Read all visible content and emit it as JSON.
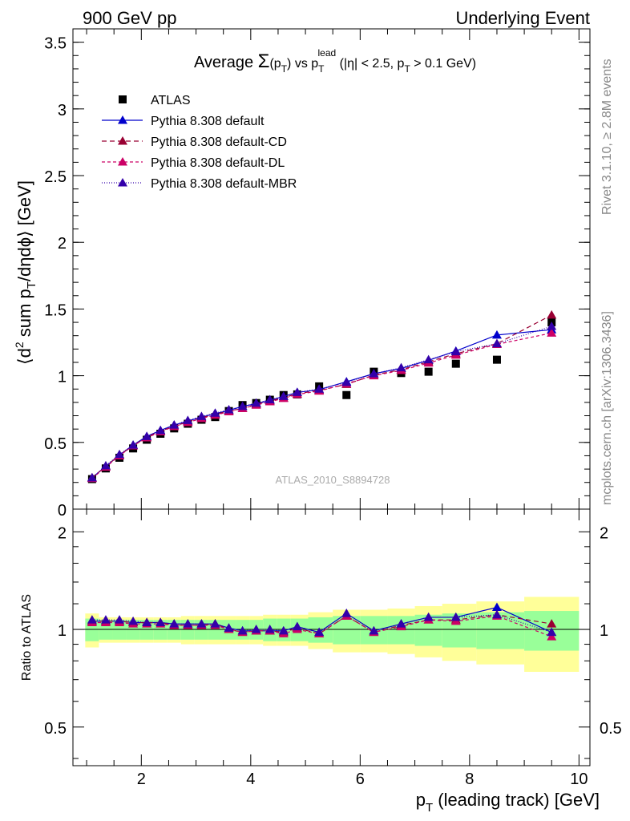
{
  "header": {
    "left": "900 GeV pp",
    "right": "Underlying Event"
  },
  "side": {
    "top": "Rivet 3.1.10, ≥ 2.8M events",
    "bottom": "mcplots.cern.ch [arXiv:1306.3436]"
  },
  "watermark": "ATLAS_2010_S8894728",
  "title": {
    "part1": "Average ",
    "sigma": "Σ",
    "part2": "(p",
    "sub1": "T",
    "part3": ") vs p",
    "sub2": "T",
    "sup2": "lead",
    "part4": " (|η| < 2.5, p",
    "sub3": "T",
    "part5": " > 0.1 GeV)"
  },
  "ylabel": {
    "a": "⟨d",
    "b": "2",
    "c": " sum p",
    "d": "T",
    "e": "/dηdϕ⟩ [GeV]"
  },
  "xlabel": {
    "a": "p",
    "b": "T",
    "c": " (leading track) [GeV]"
  },
  "ratio_ylabel": "Ratio to ATLAS",
  "chart_data": {
    "type": "scatter",
    "x": [
      1.1,
      1.35,
      1.6,
      1.85,
      2.1,
      2.35,
      2.6,
      2.85,
      3.1,
      3.35,
      3.6,
      3.85,
      4.1,
      4.35,
      4.6,
      4.85,
      5.25,
      5.75,
      6.25,
      6.75,
      7.25,
      7.75,
      8.5,
      9.5
    ],
    "xlim": [
      0.75,
      10.2
    ],
    "xticks": [
      2,
      4,
      6,
      8,
      10
    ],
    "main": {
      "ylim": [
        0,
        3.6
      ],
      "yticks": [
        "0",
        "0.5",
        "1",
        "1.5",
        "2",
        "2.5",
        "3",
        "3.5"
      ],
      "yticks_values": [
        0,
        0.5,
        1,
        1.5,
        2,
        2.5,
        3,
        3.5
      ]
    },
    "ratio": {
      "ylim": [
        0.38,
        2.35
      ],
      "yticks": [
        "0.5",
        "1",
        "2"
      ],
      "yticks_values": [
        0.5,
        1,
        2
      ],
      "band_inner": [
        0.08,
        0.07,
        0.07,
        0.07,
        0.07,
        0.07,
        0.07,
        0.07,
        0.07,
        0.07,
        0.07,
        0.07,
        0.07,
        0.08,
        0.08,
        0.08,
        0.09,
        0.1,
        0.1,
        0.1,
        0.11,
        0.12,
        0.13,
        0.14
      ],
      "band_outer": [
        0.12,
        0.09,
        0.09,
        0.09,
        0.09,
        0.09,
        0.09,
        0.1,
        0.1,
        0.1,
        0.1,
        0.1,
        0.1,
        0.11,
        0.11,
        0.11,
        0.13,
        0.15,
        0.15,
        0.16,
        0.18,
        0.2,
        0.22,
        0.26
      ]
    },
    "series": [
      {
        "name": "ATLAS",
        "color": "#000000",
        "marker": "square",
        "dash": "none",
        "y": [
          0.225,
          0.305,
          0.385,
          0.455,
          0.52,
          0.565,
          0.605,
          0.64,
          0.67,
          0.69,
          0.735,
          0.78,
          0.795,
          0.82,
          0.855,
          0.86,
          0.92,
          0.855,
          1.03,
          1.02,
          1.03,
          1.09,
          1.12,
          1.4
        ]
      },
      {
        "name": "Pythia 8.308 default",
        "color": "#0000cc",
        "marker": "triangle",
        "dash": "solid",
        "y": [
          0.235,
          0.32,
          0.405,
          0.48,
          0.545,
          0.59,
          0.63,
          0.66,
          0.69,
          0.715,
          0.74,
          0.77,
          0.79,
          0.815,
          0.845,
          0.875,
          0.895,
          0.955,
          1.015,
          1.055,
          1.115,
          1.185,
          1.305,
          1.345
        ],
        "ratio": [
          1.06,
          1.06,
          1.06,
          1.05,
          1.05,
          1.05,
          1.04,
          1.04,
          1.04,
          1.04,
          1.01,
          0.99,
          0.99,
          0.99,
          0.99,
          1.02,
          0.98,
          1.12,
          0.99,
          1.04,
          1.09,
          1.09,
          1.17,
          0.98
        ]
      },
      {
        "name": "Pythia 8.308 default-CD",
        "color": "#990033",
        "marker": "triangle",
        "dash": "6,4",
        "y": [
          0.235,
          0.32,
          0.405,
          0.475,
          0.54,
          0.585,
          0.62,
          0.655,
          0.685,
          0.71,
          0.735,
          0.755,
          0.785,
          0.81,
          0.835,
          0.865,
          0.89,
          0.935,
          1.005,
          1.045,
          1.105,
          1.165,
          1.24,
          1.455
        ],
        "ratio": [
          1.06,
          1.06,
          1.06,
          1.05,
          1.05,
          1.05,
          1.03,
          1.03,
          1.03,
          1.04,
          1.0,
          0.98,
          0.99,
          0.99,
          0.98,
          1.01,
          0.97,
          1.1,
          0.98,
          1.03,
          1.07,
          1.07,
          1.11,
          1.04
        ]
      },
      {
        "name": "Pythia 8.308 default-DL",
        "color": "#cc0066",
        "marker": "triangle",
        "dash": "4,3",
        "y": [
          0.23,
          0.315,
          0.4,
          0.475,
          0.535,
          0.58,
          0.62,
          0.65,
          0.68,
          0.705,
          0.73,
          0.755,
          0.78,
          0.805,
          0.83,
          0.86,
          0.885,
          0.94,
          1.0,
          1.04,
          1.095,
          1.155,
          1.235,
          1.32
        ],
        "ratio": [
          1.05,
          1.05,
          1.05,
          1.04,
          1.04,
          1.04,
          1.03,
          1.03,
          1.03,
          1.03,
          1.0,
          0.98,
          0.99,
          0.99,
          0.97,
          1.0,
          0.97,
          1.1,
          0.98,
          1.02,
          1.07,
          1.06,
          1.1,
          0.95
        ]
      },
      {
        "name": "Pythia 8.308 default-MBR",
        "color": "#3300aa",
        "marker": "triangle",
        "dash": "1,2",
        "y": [
          0.235,
          0.325,
          0.41,
          0.48,
          0.545,
          0.59,
          0.63,
          0.665,
          0.695,
          0.72,
          0.745,
          0.77,
          0.795,
          0.82,
          0.845,
          0.875,
          0.9,
          0.95,
          1.015,
          1.06,
          1.12,
          1.18,
          1.24,
          1.37
        ],
        "ratio": [
          1.07,
          1.07,
          1.07,
          1.06,
          1.05,
          1.05,
          1.04,
          1.04,
          1.04,
          1.04,
          1.01,
          0.99,
          1.0,
          1.0,
          0.99,
          1.02,
          0.98,
          1.12,
          0.99,
          1.04,
          1.09,
          1.09,
          1.11,
          0.98
        ]
      }
    ]
  }
}
